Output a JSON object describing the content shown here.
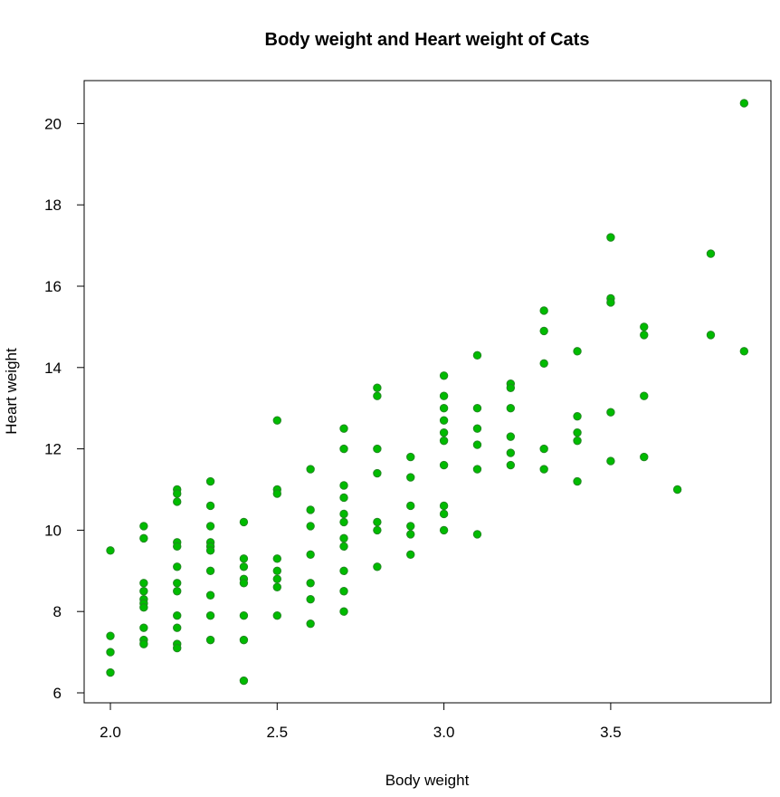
{
  "chart_data": {
    "type": "scatter",
    "title": "Body weight and Heart weight of Cats",
    "xlabel": "Body weight",
    "ylabel": "Heart weight",
    "xlim": [
      2.0,
      3.9
    ],
    "ylim": [
      6.0,
      20.5
    ],
    "x_ticks": [
      "2.0",
      "2.5",
      "3.0",
      "3.5"
    ],
    "y_ticks": [
      "6",
      "8",
      "10",
      "12",
      "14",
      "16",
      "18",
      "20"
    ],
    "grid": false,
    "legend": "none",
    "point_color": "#00bb00",
    "point_edge_color": "#228822",
    "series": [
      {
        "points": [
          [
            2.0,
            9.5
          ],
          [
            2.0,
            7.4
          ],
          [
            2.0,
            7.0
          ],
          [
            2.0,
            6.5
          ],
          [
            2.1,
            10.1
          ],
          [
            2.1,
            9.8
          ],
          [
            2.1,
            8.7
          ],
          [
            2.1,
            8.5
          ],
          [
            2.1,
            8.3
          ],
          [
            2.1,
            8.2
          ],
          [
            2.1,
            8.1
          ],
          [
            2.1,
            7.6
          ],
          [
            2.1,
            7.3
          ],
          [
            2.1,
            7.2
          ],
          [
            2.2,
            11.0
          ],
          [
            2.2,
            10.9
          ],
          [
            2.2,
            10.7
          ],
          [
            2.2,
            9.7
          ],
          [
            2.2,
            9.6
          ],
          [
            2.2,
            9.1
          ],
          [
            2.2,
            8.7
          ],
          [
            2.2,
            8.5
          ],
          [
            2.2,
            7.9
          ],
          [
            2.2,
            7.6
          ],
          [
            2.2,
            7.2
          ],
          [
            2.2,
            7.1
          ],
          [
            2.3,
            11.2
          ],
          [
            2.3,
            10.6
          ],
          [
            2.3,
            10.1
          ],
          [
            2.3,
            9.7
          ],
          [
            2.3,
            9.6
          ],
          [
            2.3,
            9.5
          ],
          [
            2.3,
            9.0
          ],
          [
            2.3,
            8.4
          ],
          [
            2.3,
            7.9
          ],
          [
            2.3,
            7.3
          ],
          [
            2.4,
            10.2
          ],
          [
            2.4,
            9.3
          ],
          [
            2.4,
            9.1
          ],
          [
            2.4,
            8.8
          ],
          [
            2.4,
            8.7
          ],
          [
            2.4,
            7.9
          ],
          [
            2.4,
            7.3
          ],
          [
            2.4,
            6.3
          ],
          [
            2.5,
            12.7
          ],
          [
            2.5,
            11.0
          ],
          [
            2.5,
            10.9
          ],
          [
            2.5,
            9.3
          ],
          [
            2.5,
            9.0
          ],
          [
            2.5,
            8.8
          ],
          [
            2.5,
            8.6
          ],
          [
            2.5,
            7.9
          ],
          [
            2.6,
            11.5
          ],
          [
            2.6,
            10.5
          ],
          [
            2.6,
            10.1
          ],
          [
            2.6,
            9.4
          ],
          [
            2.6,
            8.7
          ],
          [
            2.6,
            8.3
          ],
          [
            2.6,
            7.7
          ],
          [
            2.7,
            12.5
          ],
          [
            2.7,
            12.0
          ],
          [
            2.7,
            11.1
          ],
          [
            2.7,
            10.8
          ],
          [
            2.7,
            10.4
          ],
          [
            2.7,
            10.2
          ],
          [
            2.7,
            9.8
          ],
          [
            2.7,
            9.6
          ],
          [
            2.7,
            9.0
          ],
          [
            2.7,
            8.5
          ],
          [
            2.7,
            8.0
          ],
          [
            2.8,
            13.5
          ],
          [
            2.8,
            13.3
          ],
          [
            2.8,
            12.0
          ],
          [
            2.8,
            11.4
          ],
          [
            2.8,
            10.2
          ],
          [
            2.8,
            10.0
          ],
          [
            2.8,
            9.1
          ],
          [
            2.9,
            11.8
          ],
          [
            2.9,
            11.3
          ],
          [
            2.9,
            10.6
          ],
          [
            2.9,
            10.1
          ],
          [
            2.9,
            9.9
          ],
          [
            2.9,
            9.4
          ],
          [
            3.0,
            13.8
          ],
          [
            3.0,
            13.3
          ],
          [
            3.0,
            13.0
          ],
          [
            3.0,
            12.7
          ],
          [
            3.0,
            12.4
          ],
          [
            3.0,
            12.2
          ],
          [
            3.0,
            11.6
          ],
          [
            3.0,
            10.6
          ],
          [
            3.0,
            10.4
          ],
          [
            3.0,
            10.0
          ],
          [
            3.1,
            14.3
          ],
          [
            3.1,
            13.0
          ],
          [
            3.1,
            12.5
          ],
          [
            3.1,
            12.1
          ],
          [
            3.1,
            11.5
          ],
          [
            3.1,
            9.9
          ],
          [
            3.2,
            13.6
          ],
          [
            3.2,
            13.5
          ],
          [
            3.2,
            13.0
          ],
          [
            3.2,
            12.3
          ],
          [
            3.2,
            11.9
          ],
          [
            3.2,
            11.6
          ],
          [
            3.3,
            15.4
          ],
          [
            3.3,
            14.9
          ],
          [
            3.3,
            14.1
          ],
          [
            3.3,
            12.0
          ],
          [
            3.3,
            11.5
          ],
          [
            3.4,
            14.4
          ],
          [
            3.4,
            12.8
          ],
          [
            3.4,
            12.4
          ],
          [
            3.4,
            12.2
          ],
          [
            3.4,
            11.2
          ],
          [
            3.5,
            17.2
          ],
          [
            3.5,
            15.7
          ],
          [
            3.5,
            15.6
          ],
          [
            3.5,
            12.9
          ],
          [
            3.5,
            11.7
          ],
          [
            3.6,
            15.0
          ],
          [
            3.6,
            14.8
          ],
          [
            3.6,
            13.3
          ],
          [
            3.6,
            11.8
          ],
          [
            3.7,
            11.0
          ],
          [
            3.8,
            16.8
          ],
          [
            3.8,
            14.8
          ],
          [
            3.9,
            20.5
          ],
          [
            3.9,
            14.4
          ]
        ]
      }
    ]
  }
}
